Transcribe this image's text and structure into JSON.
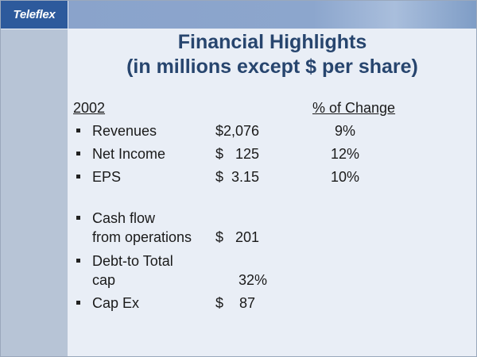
{
  "logo": "Teleflex",
  "title_line1": "Financial Highlights",
  "title_line2": "(in millions except $ per share)",
  "year": "2002",
  "change_header": "% of Change",
  "rows": [
    {
      "label": "Revenues",
      "value": "$2,076",
      "change": "9%"
    },
    {
      "label": "Net Income",
      "value": "$   125",
      "change": "12%"
    },
    {
      "label": "EPS",
      "value": "$  3.15",
      "change": "10%"
    },
    {
      "label": "Cash flow",
      "label2": "from operations",
      "value": "$   201"
    },
    {
      "label": "Debt-to Total",
      "label2": "cap",
      "value": "32%"
    },
    {
      "label": "Cap Ex",
      "value": "$    87"
    }
  ]
}
